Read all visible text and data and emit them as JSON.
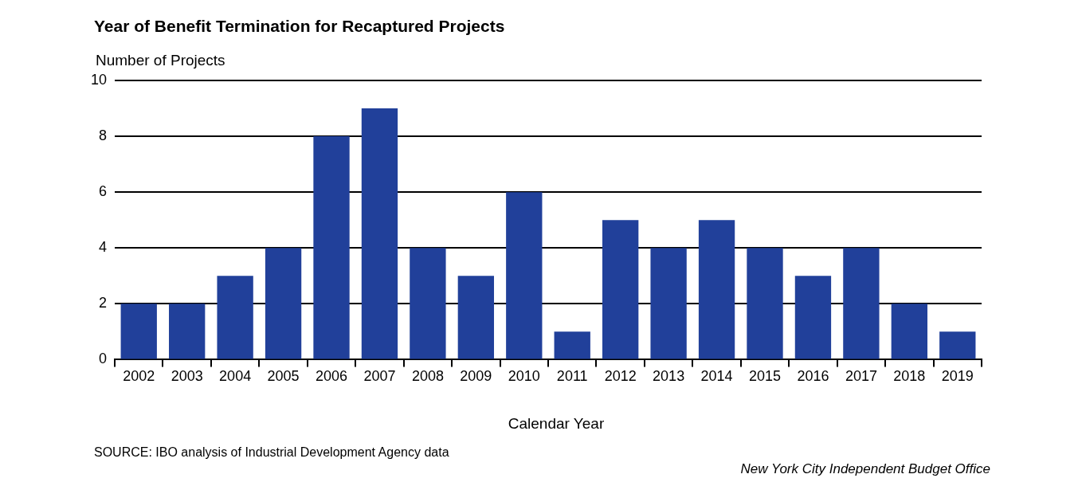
{
  "chart_data": {
    "type": "bar",
    "title": "Year of Benefit Termination for Recaptured Projects",
    "ylabel": "Number of Projects",
    "xlabel": "Calendar Year",
    "categories": [
      "2002",
      "2003",
      "2004",
      "2005",
      "2006",
      "2007",
      "2008",
      "2009",
      "2010",
      "2011",
      "2012",
      "2013",
      "2014",
      "2015",
      "2016",
      "2017",
      "2018",
      "2019"
    ],
    "values": [
      2,
      2,
      3,
      4,
      8,
      9,
      4,
      3,
      6,
      1,
      5,
      4,
      5,
      4,
      3,
      4,
      2,
      1
    ],
    "color": "#21409a",
    "ylim": [
      0,
      10
    ],
    "yticks": [
      0,
      2,
      4,
      6,
      8,
      10
    ],
    "grid": "y",
    "legend": false,
    "annotations": [
      "SOURCE: IBO analysis of Industrial Development Agency data",
      "New York City Independent Budget Office"
    ]
  }
}
